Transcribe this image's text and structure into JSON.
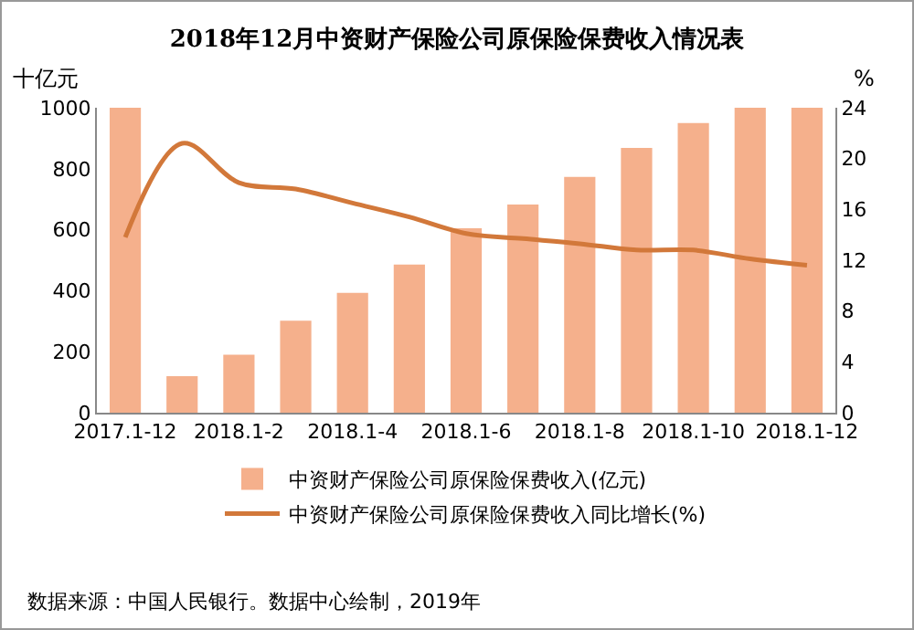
{
  "chart_data": {
    "type": "bar",
    "title": "2018年12月中资财产保险公司原保险保费收入情况表",
    "ylabel": "十亿元",
    "y2label": "%",
    "categories": [
      "2017.1-12",
      null,
      "2018.1-2",
      null,
      "2018.1-4",
      null,
      "2018.1-6",
      null,
      "2018.1-8",
      null,
      "2018.1-10",
      null,
      "2018.1-12"
    ],
    "series": [
      {
        "name": "中资财产保险公司原保险保费收入(亿元)",
        "color": "#f5b08c",
        "values": [
          1000,
          120,
          190,
          302,
          393,
          486,
          605,
          683,
          773,
          868,
          950,
          1000,
          1000
        ]
      },
      {
        "name": "中资财产保险公司原保险保费收入同比增长(%)",
        "type": "line",
        "axis": "y2",
        "color": "#d2783a",
        "values": [
          13.8,
          21.2,
          18.1,
          17.6,
          16.5,
          15.4,
          14.1,
          13.7,
          13.3,
          12.8,
          12.8,
          12.1,
          11.6
        ]
      }
    ],
    "ylim": [
      0,
      1000
    ],
    "yticks": [
      0,
      200,
      400,
      600,
      800,
      1000
    ],
    "y2lim": [
      0,
      24
    ],
    "y2ticks": [
      0,
      4,
      8,
      12,
      16,
      20,
      24
    ],
    "grid": false,
    "legend": "bottom",
    "marker": "none",
    "line_style": "solid",
    "annotations": [
      "数据来源：中国人民银行。数据中心绘制，2019年"
    ]
  }
}
